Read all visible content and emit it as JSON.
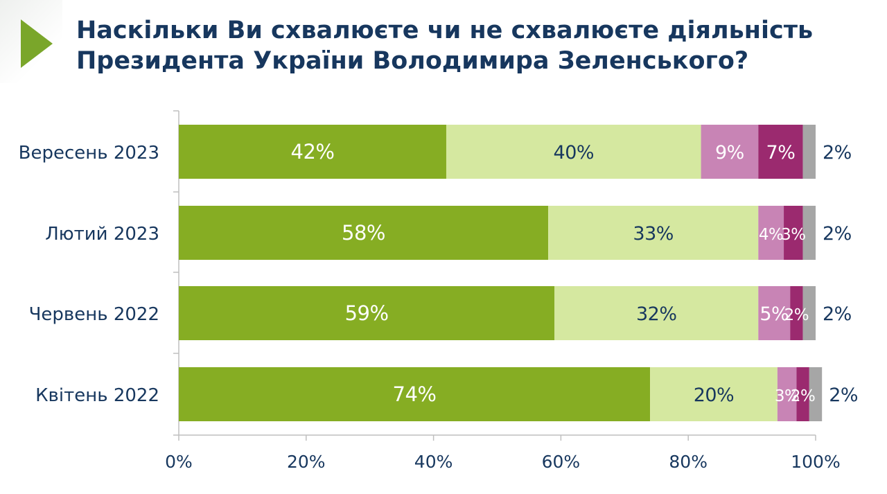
{
  "title_lines": [
    "Наскільки Ви схвалюєте чи не схвалюєте діяльність",
    "Президента України Володимира Зеленського?"
  ],
  "chart_data": {
    "type": "bar",
    "orientation": "horizontal",
    "stacked": true,
    "categories": [
      "Вересень 2023",
      "Лютий 2023",
      "Червень 2022",
      "Квітень 2022"
    ],
    "series": [
      {
        "values": [
          42,
          58,
          59,
          74
        ],
        "color": "#86ad23",
        "label_color": "#ffffff"
      },
      {
        "values": [
          40,
          33,
          32,
          20
        ],
        "color": "#d5e8a0",
        "label_color": "#17375e"
      },
      {
        "values": [
          9,
          4,
          5,
          3
        ],
        "color": "#c884b5",
        "label_color": "#ffffff"
      },
      {
        "values": [
          7,
          3,
          2,
          2
        ],
        "color": "#9b2a6f",
        "label_color": "#ffffff"
      },
      {
        "values": [
          2,
          2,
          2,
          2
        ],
        "color": "#a6a6a6",
        "label_color": "#17375e"
      }
    ],
    "xlim": [
      0,
      100
    ],
    "xticks": [
      "0%",
      "20%",
      "40%",
      "60%",
      "80%",
      "100%"
    ],
    "grid": false,
    "legend": "none"
  }
}
